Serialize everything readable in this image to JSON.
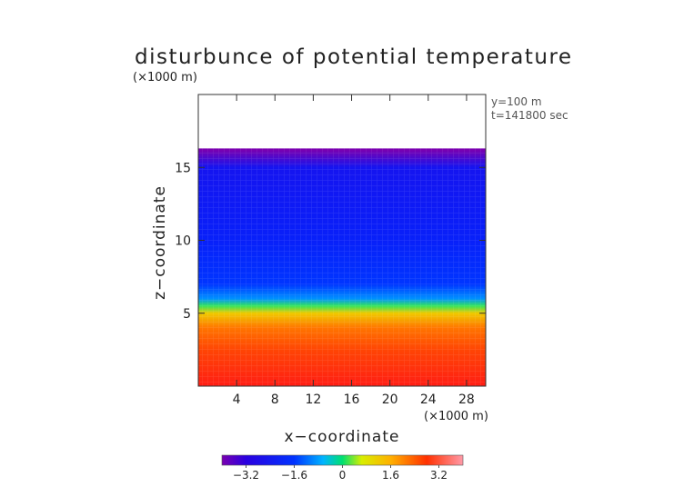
{
  "chart_data": {
    "type": "heatmap",
    "title": "disturbunce of potential temperature",
    "ylabel_unit": "(×1000 m)",
    "xlabel": "x−coordinate",
    "xlabel_unit": "(×1000 m)",
    "ylabel": "z−coordinate",
    "annotations": [
      "y=100  m",
      "t=141800 sec"
    ],
    "xlim": [
      0,
      30
    ],
    "ylim": [
      0,
      20
    ],
    "x_ticks": [
      4,
      8,
      12,
      16,
      20,
      24,
      28
    ],
    "x_tick_labels": [
      "4",
      "8",
      "12",
      "16",
      "20",
      "24",
      "28"
    ],
    "y_ticks": [
      5,
      10,
      15
    ],
    "y_tick_labels": [
      "5",
      "10",
      "15"
    ],
    "colorbar": {
      "range": [
        -4,
        4
      ],
      "ticks": [
        -3.2,
        -1.6,
        0,
        1.6,
        3.2
      ],
      "tick_labels": [
        "−3.2",
        "−1.6",
        "0",
        "1.6",
        "3.2"
      ]
    },
    "field": {
      "domain_top_km": 16.3,
      "layers": [
        {
          "z_km": 16.2,
          "value": -4.0
        },
        {
          "z_km": 15.0,
          "value": -2.7
        },
        {
          "z_km": 10.0,
          "value": -2.4
        },
        {
          "z_km": 7.0,
          "value": -2.1
        },
        {
          "z_km": 6.0,
          "value": -1.4
        },
        {
          "z_km": 5.5,
          "value": -0.2
        },
        {
          "z_km": 5.0,
          "value": 1.0
        },
        {
          "z_km": 4.0,
          "value": 2.0
        },
        {
          "z_km": 2.5,
          "value": 2.6
        },
        {
          "z_km": 0.0,
          "value": 3.3
        }
      ]
    }
  }
}
